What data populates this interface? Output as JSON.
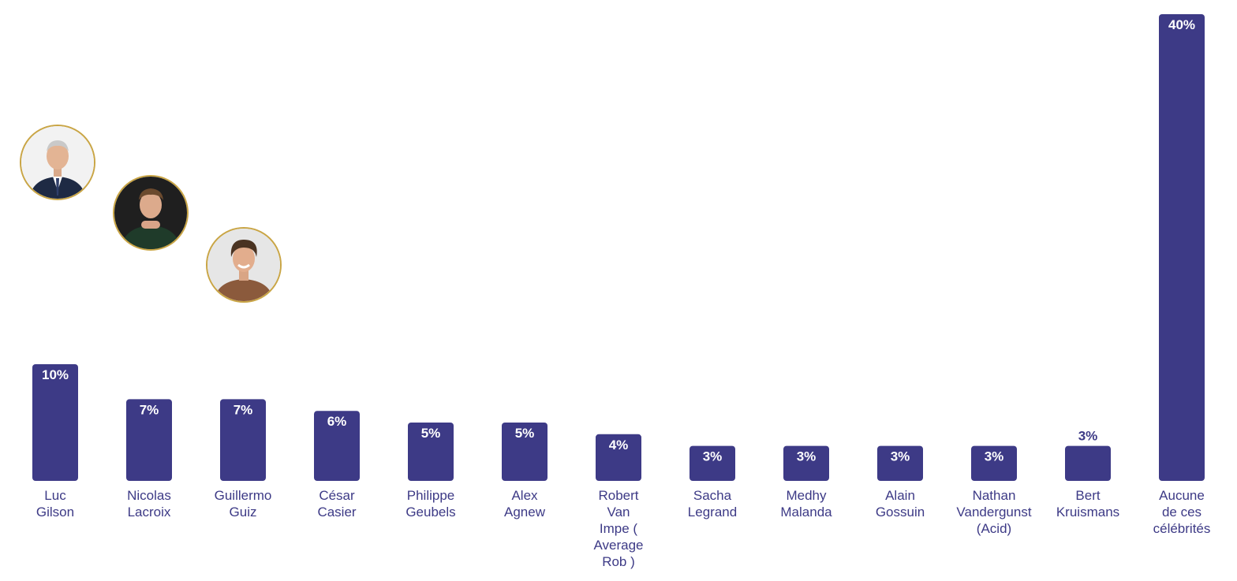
{
  "chart_data": {
    "type": "bar",
    "categories": [
      [
        "Luc",
        "Gilson"
      ],
      [
        "Nicolas",
        "Lacroix"
      ],
      [
        "Guillermo",
        "Guiz"
      ],
      [
        "César",
        "Casier"
      ],
      [
        "Philippe",
        "Geubels"
      ],
      [
        "Alex",
        "Agnew"
      ],
      [
        "Robert",
        "Van",
        "Impe (",
        "Average",
        "Rob )"
      ],
      [
        "Sacha",
        "Legrand"
      ],
      [
        "Medhy",
        "Malanda"
      ],
      [
        "Alain",
        "Gossuin"
      ],
      [
        "Nathan",
        "Vandergunst",
        "(Acid)"
      ],
      [
        "Bert",
        "Kruismans"
      ],
      [
        "Aucune",
        "de ces",
        "célébrités"
      ]
    ],
    "values": [
      10,
      7,
      7,
      6,
      5,
      5,
      4,
      3,
      3,
      3,
      3,
      3,
      40
    ],
    "value_labels": [
      "10%",
      "7%",
      "7%",
      "6%",
      "5%",
      "5%",
      "4%",
      "3%",
      "3%",
      "3%",
      "3%",
      "3%",
      "40%"
    ],
    "label_inside": [
      true,
      true,
      true,
      true,
      true,
      true,
      true,
      true,
      true,
      true,
      true,
      false,
      true
    ],
    "ylim": [
      0,
      40
    ],
    "grid": false,
    "title": "",
    "xlabel": "",
    "ylabel": "",
    "colors": {
      "bar": "#3d3a86",
      "label_inside": "#ffffff",
      "label_outside": "#3d3a86",
      "category_text": "#3d3a86",
      "avatar_border": "#c9a545"
    }
  },
  "avatars": [
    {
      "name": "Luc Gilson",
      "icon": "portrait-photo"
    },
    {
      "name": "Nicolas Lacroix",
      "icon": "portrait-photo"
    },
    {
      "name": "Guillermo Guiz",
      "icon": "portrait-photo"
    }
  ]
}
